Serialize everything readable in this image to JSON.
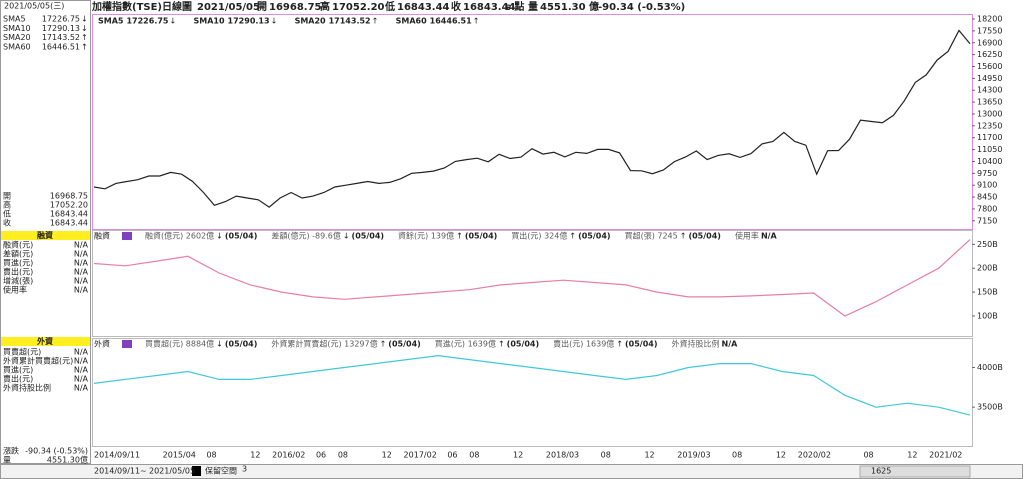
{
  "header": {
    "symbol": "加權指數(TSE)",
    "period": "日線圖",
    "date": "2021/05/05",
    "open_label": "開",
    "open": "16968.75",
    "high_label": "高",
    "high": "17052.20",
    "low_label": "低",
    "low": "16843.44",
    "close_label": "收",
    "close": "16843.44",
    "unit": "s 點",
    "volume_label": "量",
    "volume": "4551.30 億",
    "change": "-90.34 (-0.53%)"
  },
  "sidebar": {
    "date": "2021/05/05(三)",
    "sma": [
      {
        "name": "SMA5",
        "value": "17226.75",
        "arrow": "↓",
        "color": "#c8281e"
      },
      {
        "name": "SMA10",
        "value": "17290.13",
        "arrow": "↓",
        "color": "#1fb5b5"
      },
      {
        "name": "SMA20",
        "value": "17143.52",
        "arrow": "↑",
        "color": "#d0209a"
      },
      {
        "name": "SMA60",
        "value": "16446.51",
        "arrow": "↑",
        "color": "#f07030"
      }
    ],
    "ohlc": [
      {
        "label": "開",
        "value": "16968.75"
      },
      {
        "label": "高",
        "value": "17052.20"
      },
      {
        "label": "低",
        "value": "16843.44"
      },
      {
        "label": "收",
        "value": "16843.44"
      }
    ],
    "margin_title": "融資",
    "margin_rows": [
      {
        "label": "融資(元)",
        "value": "N/A",
        "color": "#e0202a"
      },
      {
        "label": "差額(元)",
        "value": "N/A",
        "color": "#e070a0"
      },
      {
        "label": "買進(元)",
        "value": "N/A",
        "color": "#f08030"
      },
      {
        "label": "賣出(元)",
        "value": "N/A",
        "color": "#2050c0"
      },
      {
        "label": "增減(張)",
        "value": "N/A",
        "color": "#20a040"
      },
      {
        "label": "使用率",
        "value": "N/A",
        "color": "#8030c0"
      }
    ],
    "foreign_title": "外資",
    "foreign_rows": [
      {
        "label": "買賣超(元)",
        "value": "N/A",
        "color": "#e0202a"
      },
      {
        "label": "外資累計買賣超(元)",
        "value": "N/A",
        "color": "#1fb5b5"
      },
      {
        "label": "買進(元)",
        "value": "N/A",
        "color": "#f08030"
      },
      {
        "label": "賣出(元)",
        "value": "N/A",
        "color": "#2050c0"
      },
      {
        "label": "外資持股比例",
        "value": "N/A",
        "color": "#20a040"
      }
    ],
    "change_label": "漲跌",
    "change": "-90.34 (-0.53%)",
    "volume_label": "量",
    "volume": "4551.30億"
  },
  "price_chart": {
    "type": "line",
    "legend": [
      {
        "name": "SMA5",
        "value": "17226.75",
        "arrow": "↓",
        "color": "#c8281e"
      },
      {
        "name": "SMA10",
        "value": "17290.13",
        "arrow": "↓",
        "color": "#1fb5b5"
      },
      {
        "name": "SMA20",
        "value": "17143.52",
        "arrow": "↑",
        "color": "#d0209a"
      },
      {
        "name": "SMA60",
        "value": "16446.51",
        "arrow": "↑",
        "color": "#f07030"
      }
    ],
    "color": "#222222",
    "values": [
      9000,
      8900,
      9200,
      9300,
      9400,
      9600,
      9600,
      9800,
      9700,
      9300,
      8700,
      8000,
      8200,
      8500,
      8400,
      8300,
      7900,
      8400,
      8700,
      8400,
      8500,
      8700,
      9000,
      9100,
      9200,
      9300,
      9200,
      9250,
      9450,
      9750,
      9800,
      9870,
      10040,
      10400,
      10500,
      10580,
      10380,
      10790,
      10560,
      10640,
      11100,
      10800,
      10900,
      10650,
      10900,
      10840,
      11060,
      11060,
      10870,
      9900,
      9890,
      9730,
      9930,
      10390,
      10640,
      10970,
      10500,
      10730,
      10820,
      10620,
      10830,
      11360,
      11490,
      11990,
      11490,
      11290,
      9700,
      10990,
      11000,
      11620,
      12660,
      12590,
      12520,
      12920,
      13720,
      14730,
      15140,
      15950,
      16430,
      17570,
      16843
    ],
    "ylim": [
      6700,
      18420
    ],
    "yticks": [
      18200,
      17550,
      16900,
      16250,
      15600,
      14950,
      14300,
      13650,
      13000,
      12350,
      11700,
      11050,
      10400,
      9750,
      9100,
      8450,
      7800,
      7150
    ]
  },
  "margin_chart": {
    "type": "line",
    "title": "融資",
    "legend": [
      {
        "text": "融資(億元) 2602億",
        "arrow": "↓",
        "date": "(05/04)",
        "color": "#e0202a"
      },
      {
        "text": "差額(億元) -89.6億",
        "arrow": "↓",
        "date": "(05/04)",
        "color": "#1fb5b5"
      },
      {
        "text": "資餘(元) 139億",
        "arrow": "↑",
        "date": "(05/04)",
        "color": "#f08030"
      },
      {
        "text": "買出(元) 324億",
        "arrow": "↑",
        "date": "(05/04)",
        "color": "#2050c0"
      },
      {
        "text": "買超(張) 7245",
        "arrow": "↑",
        "date": "(05/04)",
        "color": "#20a040"
      },
      {
        "text": "使用率",
        "arrow": "",
        "date": "N/A",
        "color": "#8030c0"
      }
    ],
    "color": "#e87fa0",
    "values": [
      210,
      205,
      215,
      225,
      190,
      165,
      150,
      140,
      135,
      140,
      145,
      150,
      155,
      165,
      170,
      175,
      170,
      165,
      150,
      140,
      140,
      142,
      145,
      148,
      100,
      130,
      165,
      200,
      260
    ],
    "ylim": [
      58,
      278
    ],
    "yticks": [
      {
        "value": 250,
        "label": "250B"
      },
      {
        "value": 200,
        "label": "200B"
      },
      {
        "value": 150,
        "label": "150B"
      },
      {
        "value": 100,
        "label": "100B"
      }
    ]
  },
  "foreign_chart": {
    "type": "line",
    "title": "外資",
    "legend": [
      {
        "text": "買賣超(元) 8884億",
        "arrow": "↓",
        "date": "(05/04)",
        "color": "#e0202a"
      },
      {
        "text": "外資累計買賣超(元) 13297億",
        "arrow": "↑",
        "date": "(05/04)",
        "color": "#1fb5b5"
      },
      {
        "text": "買進(元) 1639億",
        "arrow": "↑",
        "date": "(05/04)",
        "color": "#f08030"
      },
      {
        "text": "賣出(元) 1639億",
        "arrow": "↑",
        "date": "(05/04)",
        "color": "#2050c0"
      },
      {
        "text": "外資持股比例",
        "arrow": "",
        "date": "N/A",
        "color": "#20a040"
      }
    ],
    "color": "#40c8d8",
    "values": [
      3800,
      3850,
      3900,
      3950,
      3850,
      3850,
      3900,
      3950,
      4000,
      4050,
      4100,
      4150,
      4100,
      4050,
      4000,
      3950,
      3900,
      3850,
      3900,
      4000,
      4050,
      4050,
      3950,
      3900,
      3650,
      3500,
      3550,
      3500,
      3400
    ],
    "ylim": [
      3010,
      4360
    ],
    "yticks": [
      {
        "value": 4000,
        "label": "4000B"
      },
      {
        "value": 3500,
        "label": "3500B"
      }
    ]
  },
  "x_axis": {
    "labels": [
      "2014/09/11",
      "2015/04",
      "08",
      "12",
      "2016/02",
      "06",
      "08",
      "12",
      "2017/02",
      "06",
      "08",
      "12",
      "2018/03",
      "08",
      "12",
      "2019/03",
      "08",
      "12",
      "2020/02",
      "08",
      "12",
      "2021/02"
    ]
  },
  "footer": {
    "start": "2014/09/11",
    "sep": "~",
    "end": "2021/05/05",
    "reserve": "保留空間",
    "reserve_value": "3",
    "scroll": "1625"
  }
}
